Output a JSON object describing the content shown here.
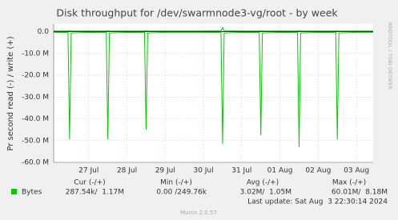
{
  "chart_data": {
    "type": "line",
    "title": "Disk throughput for /dev/swarmnode3-vg/root - by week",
    "y_label": "Pr second read (-) / write (+)",
    "side_note": "RRDTOOL / TOBI OETIKER",
    "x": [
      "2024-07-26T14:00",
      "2024-07-26T23:00",
      "2024-07-27T00:00",
      "2024-07-27T01:00",
      "2024-07-27T12:00",
      "2024-07-27T23:00",
      "2024-07-28T00:00",
      "2024-07-28T01:00",
      "2024-07-28T12:00",
      "2024-07-28T23:00",
      "2024-07-29T00:00",
      "2024-07-29T01:00",
      "2024-07-29T12:00",
      "2024-07-30T12:00",
      "2024-07-30T23:00",
      "2024-07-31T00:00",
      "2024-07-31T01:00",
      "2024-07-31T12:00",
      "2024-07-31T23:00",
      "2024-08-01T00:00",
      "2024-08-01T01:00",
      "2024-08-01T12:00",
      "2024-08-01T23:00",
      "2024-08-02T00:00",
      "2024-08-02T01:00",
      "2024-08-02T12:00",
      "2024-08-02T23:00",
      "2024-08-03T00:00",
      "2024-08-03T01:00",
      "2024-08-03T12:00",
      "2024-08-03T22:30"
    ],
    "series": [
      {
        "name": "Bytes",
        "color": "#00cc00",
        "values": [
          -300000,
          -400000,
          -49500000,
          -600000,
          -300000,
          -400000,
          -49500000,
          -600000,
          -300000,
          -400000,
          -45000000,
          -600000,
          -300000,
          -300000,
          -400000,
          -51500000,
          -600000,
          -300000,
          -400000,
          -47500000,
          -600000,
          -300000,
          -400000,
          -53000000,
          -600000,
          -300000,
          -400000,
          -49500000,
          -600000,
          -300000,
          -300000
        ]
      },
      {
        "color": "#00cc00",
        "values": [
          300000,
          300000,
          500000,
          300000,
          300000,
          300000,
          500000,
          300000,
          300000,
          300000,
          500000,
          300000,
          300000,
          300000,
          400000,
          1800000,
          400000,
          300000,
          300000,
          500000,
          300000,
          300000,
          300000,
          500000,
          300000,
          300000,
          300000,
          500000,
          300000,
          300000,
          300000
        ]
      }
    ],
    "xlim": [
      "2024-07-26T14:00",
      "2024-08-03T22:30"
    ],
    "xticks": [
      {
        "value": "2024-07-27T12:00",
        "label": "27 Jul"
      },
      {
        "value": "2024-07-28T12:00",
        "label": "28 Jul"
      },
      {
        "value": "2024-07-29T12:00",
        "label": "29 Jul"
      },
      {
        "value": "2024-07-30T12:00",
        "label": "30 Jul"
      },
      {
        "value": "2024-07-31T12:00",
        "label": "31 Jul"
      },
      {
        "value": "2024-08-01T12:00",
        "label": "01 Aug"
      },
      {
        "value": "2024-08-02T12:00",
        "label": "02 Aug"
      },
      {
        "value": "2024-08-03T12:00",
        "label": "03 Aug"
      }
    ],
    "ylim": [
      -60000000,
      3500000
    ],
    "yticks": [
      {
        "value": 0,
        "label": "0.0"
      },
      {
        "value": -10000000,
        "label": "-10.0 M"
      },
      {
        "value": -20000000,
        "label": "-20.0 M"
      },
      {
        "value": -30000000,
        "label": "-30.0 M"
      },
      {
        "value": -40000000,
        "label": "-40.0 M"
      },
      {
        "value": -50000000,
        "label": "-50.0 M"
      },
      {
        "value": -60000000,
        "label": "-60.0 M"
      }
    ],
    "grid": true,
    "stats": {
      "headers": [
        "Cur (-/+)",
        "Min (-/+)",
        "Avg (-/+)",
        "Max (-/+)"
      ],
      "values": [
        "287.54k/  1.17M",
        "0.00 /249.76k",
        "3.02M/  1.05M",
        "60.01M/  8.18M"
      ]
    },
    "last_update": "Last update: Sat Aug  3 22:30:14 2024",
    "footer": "Munin 2.0.57"
  }
}
